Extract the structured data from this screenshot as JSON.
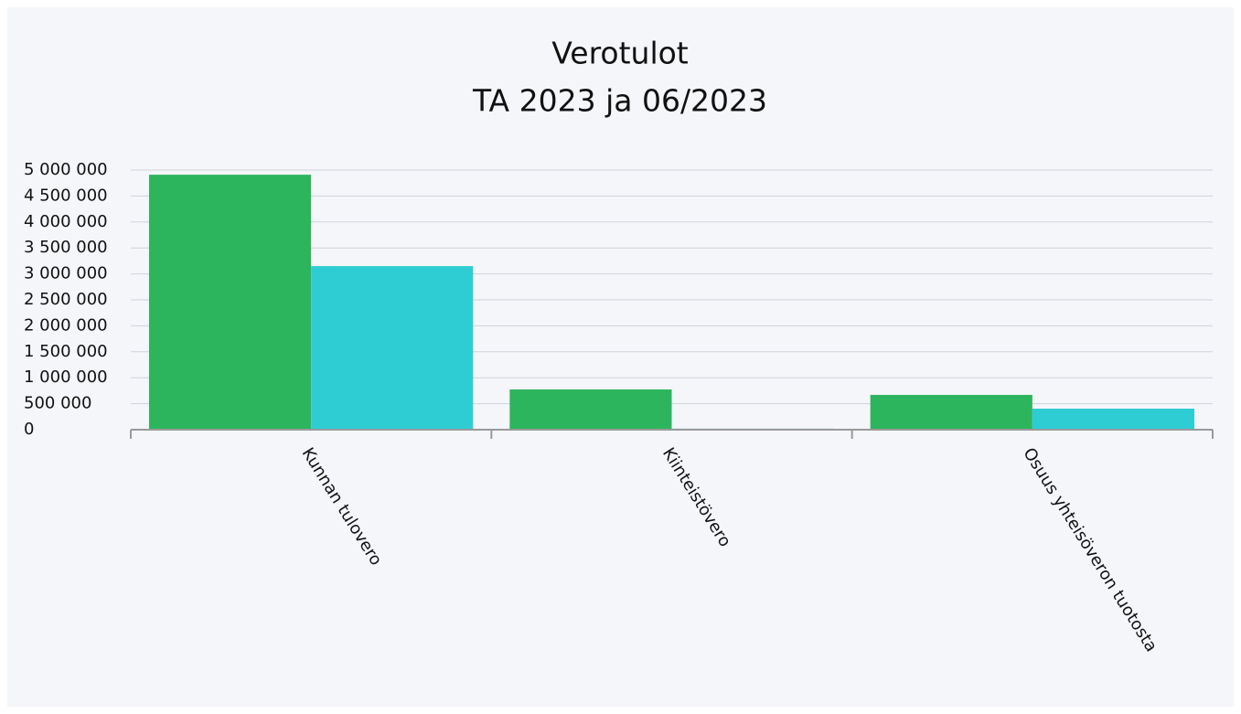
{
  "chart_data": {
    "type": "bar",
    "title": "Verotulot",
    "subtitle": "TA 2023 ja 06/2023",
    "categories": [
      "Kunnan tulovero",
      "Kiinteistövero",
      "Osuus yhteisöveron tuotosta"
    ],
    "series": [
      {
        "color": "#2db55d",
        "values": [
          4910000,
          775000,
          670000
        ]
      },
      {
        "color": "#2ecdd4",
        "values": [
          3150000,
          20000,
          405000
        ]
      }
    ],
    "ylim": [
      0,
      5000000
    ],
    "yticks": [
      0,
      {
        "value": 500000,
        "label": "500 000"
      },
      {
        "value": 1000000,
        "label": "1 000 000"
      },
      {
        "value": 1500000,
        "label": "1 500 000"
      },
      {
        "value": 2000000,
        "label": "2 000 000"
      },
      {
        "value": 2500000,
        "label": "2 500 000"
      },
      {
        "value": 3000000,
        "label": "3 000 000"
      },
      {
        "value": 3500000,
        "label": "3 500 000"
      },
      {
        "value": 4000000,
        "label": "4 000 000"
      },
      {
        "value": 4500000,
        "label": "4 500 000"
      },
      {
        "value": 5000000,
        "label": "5 000 000"
      }
    ],
    "grid": true
  }
}
